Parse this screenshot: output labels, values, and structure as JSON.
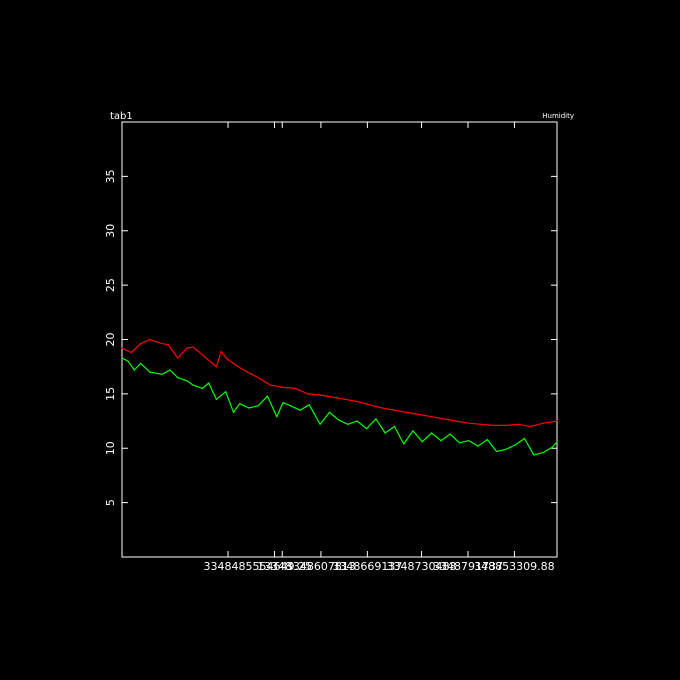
{
  "chart_data": {
    "type": "line",
    "title": "tab1",
    "subtitle": "Humidity",
    "xlabel": "",
    "ylabel": "",
    "xlim": [
      3348348000,
      3348910000
    ],
    "ylim": [
      0,
      40
    ],
    "grid": false,
    "x_tick_labels": [
      {
        "value": 3348485000,
        "label": "3348485"
      },
      {
        "value": 3348545000,
        "label": "13348"
      },
      {
        "value": 3348555000,
        "label": "554649.25"
      },
      {
        "value": 3348605000,
        "label": "3348607813"
      },
      {
        "value": 3348665000,
        "label": "3348669137"
      },
      {
        "value": 3348735000,
        "label": "3348730483"
      },
      {
        "value": 3348795000,
        "label": "3348791737"
      },
      {
        "value": 3348855000,
        "label": "348853309.88"
      }
    ],
    "y_ticks": [
      5,
      10,
      15,
      20,
      25,
      30,
      35
    ],
    "series": [
      {
        "color": "#ff0000",
        "x": [
          3348348000,
          3348360000,
          3348372000,
          3348384000,
          3348396000,
          3348408000,
          3348420000,
          3348432000,
          3348440000,
          3348470000,
          3348476000,
          3348484000,
          3348496000,
          3348510000,
          3348524000,
          3348540000,
          3348556000,
          3348572000,
          3348588000,
          3348604000,
          3348620000,
          3348636000,
          3348652000,
          3348668000,
          3348684000,
          3348700000,
          3348716000,
          3348732000,
          3348748000,
          3348764000,
          3348780000,
          3348796000,
          3348812000,
          3348828000,
          3348844000,
          3348860000,
          3348876000,
          3348892000,
          3348910000
        ],
        "values": [
          19.2,
          18.8,
          19.6,
          20.0,
          19.7,
          19.5,
          18.3,
          19.2,
          19.3,
          17.5,
          18.9,
          18.2,
          17.6,
          17.0,
          16.5,
          15.8,
          15.6,
          15.5,
          15.0,
          14.9,
          14.7,
          14.5,
          14.3,
          14.0,
          13.7,
          13.5,
          13.3,
          13.1,
          12.9,
          12.7,
          12.5,
          12.3,
          12.2,
          12.1,
          12.1,
          12.2,
          12.0,
          12.3,
          12.5
        ]
      },
      {
        "color": "#00ff00",
        "x": [
          3348348000,
          3348356000,
          3348364000,
          3348372000,
          3348384000,
          3348400000,
          3348410000,
          3348420000,
          3348432000,
          3348440000,
          3348452000,
          3348460000,
          3348470000,
          3348482000,
          3348492000,
          3348500000,
          3348512000,
          3348524000,
          3348536000,
          3348548000,
          3348556000,
          3348566000,
          3348578000,
          3348590000,
          3348604000,
          3348616000,
          3348628000,
          3348640000,
          3348652000,
          3348664000,
          3348676000,
          3348688000,
          3348700000,
          3348712000,
          3348724000,
          3348736000,
          3348748000,
          3348760000,
          3348772000,
          3348784000,
          3348796000,
          3348808000,
          3348820000,
          3348832000,
          3348844000,
          3348856000,
          3348868000,
          3348880000,
          3348892000,
          3348904000,
          3348910000
        ],
        "values": [
          18.3,
          18.0,
          17.2,
          17.8,
          17.0,
          16.8,
          17.2,
          16.5,
          16.2,
          15.8,
          15.5,
          16.0,
          14.5,
          15.2,
          13.3,
          14.1,
          13.7,
          13.9,
          14.8,
          12.9,
          14.2,
          13.9,
          13.5,
          14.0,
          12.2,
          13.3,
          12.6,
          12.2,
          12.5,
          11.8,
          12.7,
          11.4,
          12.0,
          10.4,
          11.6,
          10.6,
          11.4,
          10.7,
          11.3,
          10.5,
          10.7,
          10.2,
          10.8,
          9.7,
          9.9,
          10.3,
          10.9,
          9.4,
          9.6,
          10.1,
          10.6
        ]
      }
    ]
  }
}
